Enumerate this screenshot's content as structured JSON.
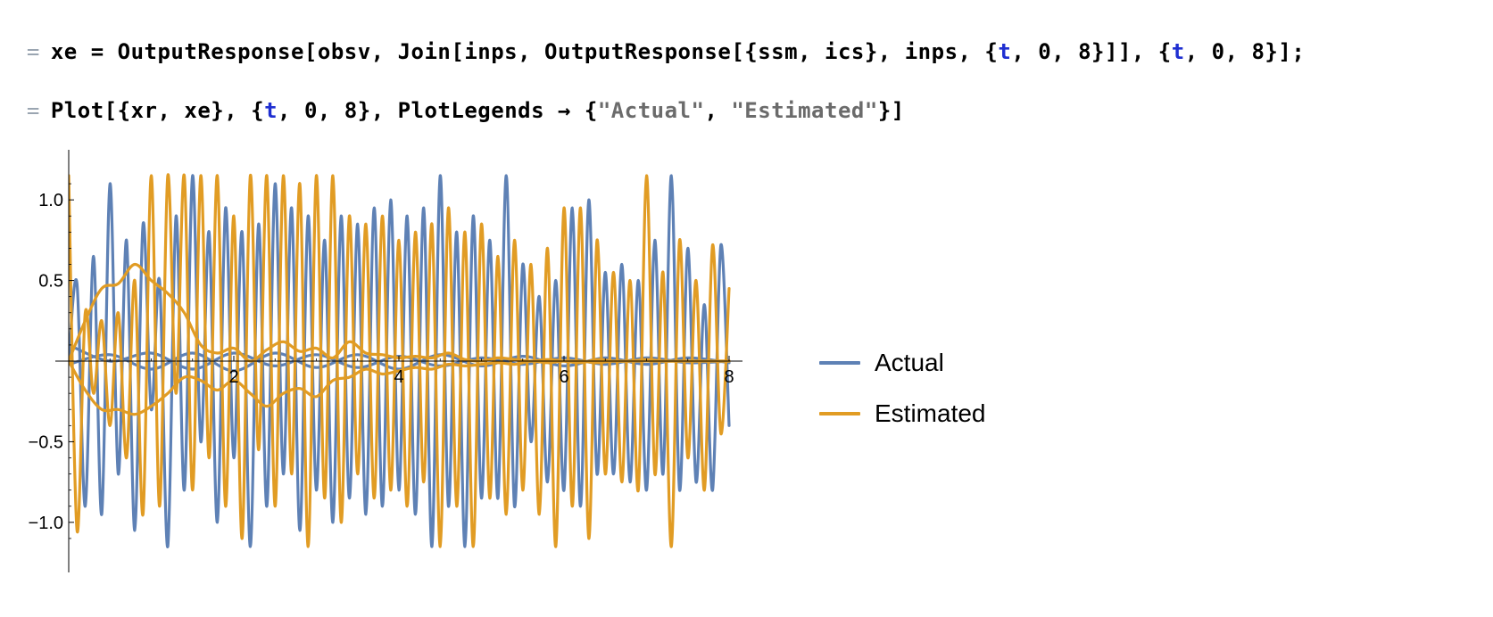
{
  "notebook": {
    "input_marker": "=",
    "line1": {
      "tokens": [
        {
          "t": "xe",
          "k": "sym"
        },
        {
          "t": " = ",
          "k": "punct"
        },
        {
          "t": "OutputResponse",
          "k": "sym"
        },
        {
          "t": "[",
          "k": "punct"
        },
        {
          "t": "obsv",
          "k": "sym"
        },
        {
          "t": ", ",
          "k": "punct"
        },
        {
          "t": "Join",
          "k": "sym"
        },
        {
          "t": "[",
          "k": "punct"
        },
        {
          "t": "inps",
          "k": "sym"
        },
        {
          "t": ", ",
          "k": "punct"
        },
        {
          "t": "OutputResponse",
          "k": "sym"
        },
        {
          "t": "[{",
          "k": "punct"
        },
        {
          "t": "ssm",
          "k": "sym"
        },
        {
          "t": ", ",
          "k": "punct"
        },
        {
          "t": "ics",
          "k": "sym"
        },
        {
          "t": "}, ",
          "k": "punct"
        },
        {
          "t": "inps",
          "k": "sym"
        },
        {
          "t": ", {",
          "k": "punct"
        },
        {
          "t": "t",
          "k": "var"
        },
        {
          "t": ", ",
          "k": "punct"
        },
        {
          "t": "0",
          "k": "num"
        },
        {
          "t": ", ",
          "k": "punct"
        },
        {
          "t": "8",
          "k": "num"
        },
        {
          "t": "}]], {",
          "k": "punct"
        },
        {
          "t": "t",
          "k": "var"
        },
        {
          "t": ", ",
          "k": "punct"
        },
        {
          "t": "0",
          "k": "num"
        },
        {
          "t": ", ",
          "k": "punct"
        },
        {
          "t": "8",
          "k": "num"
        },
        {
          "t": "}];",
          "k": "punct"
        }
      ]
    },
    "line2": {
      "tokens": [
        {
          "t": "Plot",
          "k": "sym"
        },
        {
          "t": "[{",
          "k": "punct"
        },
        {
          "t": "xr",
          "k": "sym"
        },
        {
          "t": ", ",
          "k": "punct"
        },
        {
          "t": "xe",
          "k": "sym"
        },
        {
          "t": "}, {",
          "k": "punct"
        },
        {
          "t": "t",
          "k": "var"
        },
        {
          "t": ", ",
          "k": "punct"
        },
        {
          "t": "0",
          "k": "num"
        },
        {
          "t": ", ",
          "k": "punct"
        },
        {
          "t": "8",
          "k": "num"
        },
        {
          "t": "}, ",
          "k": "punct"
        },
        {
          "t": "PlotLegends",
          "k": "sym"
        },
        {
          "t": " → {",
          "k": "punct"
        },
        {
          "t": "\"Actual\"",
          "k": "str"
        },
        {
          "t": ", ",
          "k": "punct"
        },
        {
          "t": "\"Estimated\"",
          "k": "str"
        },
        {
          "t": "}]",
          "k": "punct"
        }
      ]
    }
  },
  "chart_data": {
    "type": "line",
    "xlim": [
      0,
      8
    ],
    "ylim": [
      -1.2,
      1.2
    ],
    "x_ticks": [
      2,
      4,
      6,
      8
    ],
    "x_tick_labels": [
      "2",
      "4",
      "6",
      "8"
    ],
    "y_ticks": [
      -1.0,
      -0.5,
      0.5,
      1.0
    ],
    "y_tick_labels": [
      "−1.0",
      "−0.5",
      "0.5",
      "1.0"
    ],
    "grid": false,
    "legend_position": "right",
    "colors": {
      "actual": "#5e81b5",
      "estimated": "#e19c24",
      "axis": "#000000"
    },
    "series": [
      {
        "name": "Actual",
        "color": "#5e81b5",
        "curves": [
          {
            "x": [
              0,
              0.1,
              0.2,
              0.3,
              0.4,
              0.5,
              0.6,
              0.7,
              0.8,
              0.9,
              1.0,
              1.1,
              1.2,
              1.3,
              1.4,
              1.5,
              1.6,
              1.7,
              1.8,
              1.9,
              2.0,
              2.1,
              2.2,
              2.3,
              2.4,
              2.5,
              2.6,
              2.7,
              2.8,
              2.9,
              3.0,
              3.1,
              3.2,
              3.3,
              3.4,
              3.5,
              3.6,
              3.7,
              3.8,
              3.9,
              4.0,
              4.1,
              4.2,
              4.3,
              4.4,
              4.5,
              4.6,
              4.7,
              4.8,
              4.9,
              5.0,
              5.1,
              5.2,
              5.3,
              5.4,
              5.5,
              5.6,
              5.7,
              5.8,
              5.9,
              6.0,
              6.1,
              6.2,
              6.3,
              6.4,
              6.5,
              6.6,
              6.7,
              6.8,
              6.9,
              7.0,
              7.1,
              7.2,
              7.3,
              7.4,
              7.5,
              7.6,
              7.7,
              7.8,
              7.9,
              8.0
            ],
            "y": [
              0.0,
              0.48,
              -0.9,
              0.65,
              -0.95,
              1.1,
              -0.7,
              0.75,
              -1.05,
              0.85,
              -0.3,
              0.5,
              -1.15,
              0.9,
              -0.8,
              1.15,
              -0.5,
              0.8,
              -1.0,
              0.95,
              -0.6,
              0.8,
              -1.15,
              0.85,
              -0.9,
              1.1,
              -0.7,
              0.95,
              -1.05,
              0.9,
              -0.8,
              0.75,
              -1.0,
              0.9,
              -0.85,
              0.85,
              -0.95,
              0.95,
              -0.9,
              1.0,
              -0.8,
              0.9,
              -0.95,
              0.95,
              -1.15,
              1.15,
              -0.9,
              0.8,
              -1.15,
              0.9,
              -0.85,
              0.75,
              -0.85,
              1.15,
              -0.9,
              0.6,
              -0.5,
              0.4,
              -0.75,
              0.5,
              -0.8,
              0.95,
              -0.9,
              1.0,
              -0.7,
              0.55,
              -0.7,
              0.6,
              -0.75,
              0.5,
              -0.8,
              0.75,
              -0.7,
              1.15,
              -0.8,
              0.7,
              -0.75,
              0.35,
              -0.8,
              0.72,
              -0.4
            ]
          },
          {
            "x": [
              0,
              0.5,
              1.0,
              1.5,
              2.0,
              2.5,
              3.0,
              3.5,
              4.0,
              4.5,
              5.0,
              5.5,
              6.0,
              6.5,
              7.0,
              7.5,
              8.0
            ],
            "y": [
              0.1,
              0.0,
              0.05,
              -0.05,
              0.05,
              -0.03,
              0.04,
              -0.04,
              0.03,
              -0.03,
              0.02,
              -0.02,
              0.02,
              -0.02,
              0.02,
              -0.01,
              0.0
            ]
          },
          {
            "x": [
              0,
              0.5,
              1.0,
              1.5,
              2.0,
              2.5,
              3.0,
              3.5,
              4.0,
              4.5,
              5.0,
              5.5,
              6.0,
              6.5,
              7.0,
              7.5,
              8.0
            ],
            "y": [
              -0.02,
              0.04,
              -0.05,
              0.05,
              -0.06,
              0.05,
              -0.04,
              0.04,
              -0.05,
              0.04,
              -0.03,
              0.03,
              -0.03,
              0.02,
              -0.02,
              0.02,
              -0.01
            ]
          }
        ]
      },
      {
        "name": "Estimated",
        "color": "#e19c24",
        "curves": [
          {
            "x": [
              0,
              0.1,
              0.2,
              0.3,
              0.4,
              0.5,
              0.6,
              0.7,
              0.8,
              0.9,
              1.0,
              1.1,
              1.2,
              1.3,
              1.4,
              1.5,
              1.6,
              1.7,
              1.8,
              1.9,
              2.0,
              2.1,
              2.2,
              2.3,
              2.4,
              2.5,
              2.6,
              2.7,
              2.8,
              2.9,
              3.0,
              3.1,
              3.2,
              3.3,
              3.4,
              3.5,
              3.6,
              3.7,
              3.8,
              3.9,
              4.0,
              4.1,
              4.2,
              4.3,
              4.4,
              4.5,
              4.6,
              4.7,
              4.8,
              4.9,
              5.0,
              5.1,
              5.2,
              5.3,
              5.4,
              5.5,
              5.6,
              5.7,
              5.8,
              5.9,
              6.0,
              6.1,
              6.2,
              6.3,
              6.4,
              6.5,
              6.6,
              6.7,
              6.8,
              6.9,
              7.0,
              7.1,
              7.2,
              7.3,
              7.4,
              7.5,
              7.6,
              7.7,
              7.8,
              7.9,
              8.0
            ],
            "y": [
              1.15,
              -1.05,
              0.3,
              -0.2,
              0.25,
              -0.4,
              0.3,
              -0.6,
              0.5,
              -0.95,
              1.15,
              -0.9,
              1.15,
              -0.2,
              1.15,
              -0.8,
              1.15,
              -0.6,
              1.15,
              -0.9,
              0.9,
              -1.1,
              1.15,
              -0.55,
              1.15,
              -0.9,
              1.15,
              -0.7,
              1.1,
              -1.15,
              1.15,
              -0.85,
              1.15,
              -1.0,
              0.9,
              -0.7,
              0.85,
              -0.85,
              0.9,
              -0.8,
              0.75,
              -0.9,
              0.8,
              -0.75,
              0.85,
              -1.15,
              0.95,
              -0.9,
              0.8,
              -1.15,
              0.85,
              -0.85,
              0.65,
              -0.95,
              0.75,
              -0.8,
              0.6,
              -0.95,
              0.7,
              -1.15,
              0.95,
              -0.9,
              0.95,
              -1.1,
              0.75,
              -0.7,
              0.55,
              -0.75,
              0.5,
              -0.8,
              1.15,
              -0.7,
              0.55,
              -1.15,
              0.75,
              -0.6,
              0.5,
              -0.8,
              0.72,
              -0.45,
              0.45
            ]
          },
          {
            "x": [
              0,
              0.2,
              0.4,
              0.6,
              0.8,
              1.0,
              1.2,
              1.4,
              1.6,
              1.8,
              2.0,
              2.2,
              2.4,
              2.6,
              2.8,
              3.0,
              3.2,
              3.4,
              3.6,
              3.8,
              4.0,
              4.2,
              4.4,
              4.6,
              4.8,
              5.0,
              5.2,
              5.4,
              5.6,
              5.8,
              6.0,
              6.2,
              6.4,
              6.6,
              6.8,
              7.0,
              7.2,
              7.4,
              7.6,
              7.8,
              8.0
            ],
            "y": [
              0.0,
              0.25,
              0.45,
              0.48,
              0.6,
              0.5,
              0.42,
              0.3,
              0.1,
              0.05,
              0.08,
              0.0,
              0.07,
              0.12,
              0.06,
              0.08,
              0.02,
              0.12,
              0.05,
              0.04,
              0.02,
              0.03,
              0.02,
              0.05,
              0.01,
              0.0,
              0.02,
              0.01,
              0.0,
              0.01,
              0.0,
              -0.01,
              0.01,
              0.0,
              0.0,
              0.01,
              0.0,
              0.0,
              0.0,
              0.0,
              0.0
            ]
          },
          {
            "x": [
              0,
              0.2,
              0.4,
              0.6,
              0.8,
              1.0,
              1.2,
              1.4,
              1.6,
              1.8,
              2.0,
              2.2,
              2.4,
              2.6,
              2.8,
              3.0,
              3.2,
              3.4,
              3.6,
              3.8,
              4.0,
              4.2,
              4.4,
              4.6,
              4.8,
              5.0,
              5.2,
              5.4,
              5.6,
              5.8,
              6.0,
              6.2,
              6.4,
              6.6,
              6.8,
              7.0,
              7.2,
              7.4,
              7.6,
              7.8,
              8.0
            ],
            "y": [
              0.0,
              -0.18,
              -0.3,
              -0.3,
              -0.33,
              -0.28,
              -0.2,
              -0.1,
              -0.12,
              -0.18,
              -0.12,
              -0.2,
              -0.28,
              -0.2,
              -0.17,
              -0.22,
              -0.12,
              -0.1,
              -0.05,
              -0.08,
              -0.06,
              -0.04,
              -0.05,
              -0.02,
              -0.03,
              -0.02,
              -0.01,
              -0.02,
              0.0,
              -0.01,
              0.0,
              0.0,
              -0.01,
              0.0,
              0.0,
              0.0,
              0.0,
              0.0,
              0.0,
              0.0,
              0.0
            ]
          }
        ]
      }
    ]
  }
}
